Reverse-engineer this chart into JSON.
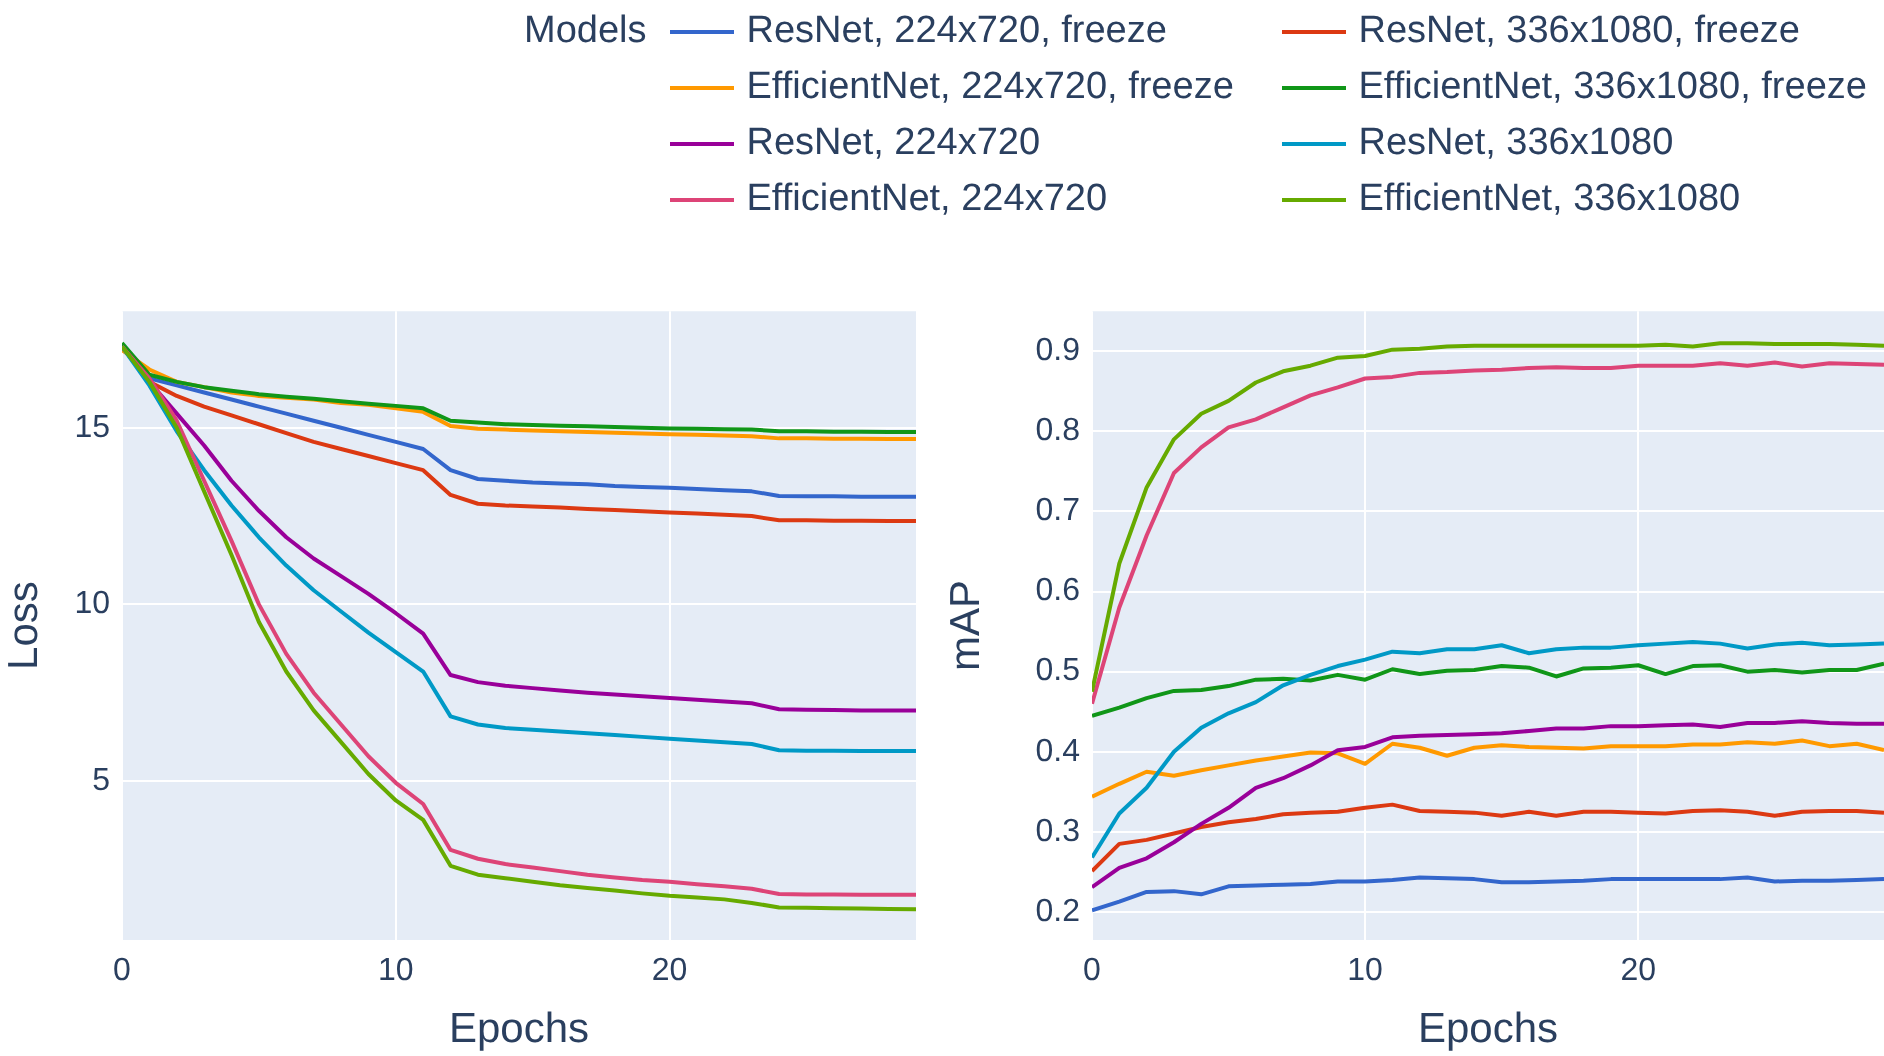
{
  "chart_data": [
    {
      "type": "line",
      "xlabel": "Epochs",
      "ylabel": "Loss",
      "legend_title": "Models",
      "legend": "top",
      "grid": true,
      "marker": "none",
      "line_style": "solid",
      "x": [
        0,
        1,
        2,
        3,
        4,
        5,
        6,
        7,
        8,
        9,
        10,
        11,
        12,
        13,
        14,
        15,
        16,
        17,
        18,
        19,
        20,
        21,
        22,
        23,
        24,
        25,
        26,
        27,
        28,
        29
      ],
      "xlim": [
        0,
        29
      ],
      "xticks": [
        0,
        10,
        20
      ],
      "ylim": [
        0.5,
        18.3
      ],
      "yticks": [
        5,
        10,
        15
      ],
      "series": [
        {
          "name": "ResNet, 224x720, freeze",
          "color": "#3366cc",
          "values": [
            17.3,
            16.4,
            16.2,
            16.0,
            15.8,
            15.6,
            15.4,
            15.2,
            15.0,
            14.8,
            14.6,
            14.4,
            13.8,
            13.55,
            13.5,
            13.45,
            13.42,
            13.4,
            13.35,
            13.32,
            13.3,
            13.27,
            13.23,
            13.2,
            13.07,
            13.06,
            13.06,
            13.05,
            13.05,
            13.05
          ]
        },
        {
          "name": "ResNet, 336x1080, freeze",
          "color": "#dc3912",
          "values": [
            17.3,
            16.3,
            15.9,
            15.6,
            15.35,
            15.1,
            14.85,
            14.6,
            14.4,
            14.2,
            14.0,
            13.8,
            13.1,
            12.85,
            12.8,
            12.77,
            12.74,
            12.7,
            12.67,
            12.64,
            12.6,
            12.57,
            12.54,
            12.5,
            12.38,
            12.38,
            12.37,
            12.37,
            12.36,
            12.36
          ]
        },
        {
          "name": "EfficientNet, 224x720, freeze",
          "color": "#ff9900",
          "values": [
            17.2,
            16.65,
            16.3,
            16.15,
            16.0,
            15.9,
            15.85,
            15.8,
            15.7,
            15.65,
            15.55,
            15.45,
            15.05,
            14.97,
            14.95,
            14.92,
            14.9,
            14.88,
            14.86,
            14.84,
            14.82,
            14.8,
            14.78,
            14.76,
            14.7,
            14.7,
            14.69,
            14.69,
            14.68,
            14.68
          ]
        },
        {
          "name": "EfficientNet, 336x1080, freeze",
          "color": "#109618",
          "values": [
            17.4,
            16.5,
            16.3,
            16.15,
            16.05,
            15.95,
            15.88,
            15.82,
            15.75,
            15.68,
            15.62,
            15.55,
            15.2,
            15.15,
            15.1,
            15.08,
            15.06,
            15.04,
            15.02,
            15.0,
            14.98,
            14.97,
            14.96,
            14.95,
            14.9,
            14.9,
            14.89,
            14.89,
            14.88,
            14.88
          ]
        },
        {
          "name": "ResNet, 224x720",
          "color": "#990099",
          "values": [
            17.3,
            16.3,
            15.4,
            14.5,
            13.5,
            12.65,
            11.9,
            11.3,
            10.8,
            10.3,
            9.75,
            9.17,
            8.0,
            7.8,
            7.7,
            7.63,
            7.56,
            7.5,
            7.45,
            7.4,
            7.35,
            7.3,
            7.25,
            7.2,
            7.03,
            7.02,
            7.01,
            7.0,
            7.0,
            7.0
          ]
        },
        {
          "name": "ResNet, 336x1080",
          "color": "#0099c6",
          "values": [
            17.3,
            16.2,
            14.9,
            13.8,
            12.8,
            11.9,
            11.1,
            10.4,
            9.8,
            9.2,
            8.65,
            8.1,
            6.83,
            6.6,
            6.5,
            6.45,
            6.4,
            6.35,
            6.3,
            6.25,
            6.2,
            6.15,
            6.1,
            6.05,
            5.87,
            5.86,
            5.86,
            5.85,
            5.85,
            5.85
          ]
        },
        {
          "name": "EfficientNet, 224x720",
          "color": "#dd4477",
          "values": [
            17.3,
            16.4,
            15.2,
            13.5,
            11.8,
            10.0,
            8.6,
            7.5,
            6.6,
            5.7,
            4.95,
            4.35,
            3.05,
            2.8,
            2.65,
            2.55,
            2.45,
            2.35,
            2.27,
            2.2,
            2.15,
            2.08,
            2.02,
            1.95,
            1.8,
            1.79,
            1.79,
            1.78,
            1.78,
            1.78
          ]
        },
        {
          "name": "EfficientNet, 336x1080",
          "color": "#66aa00",
          "values": [
            17.3,
            16.3,
            15.0,
            13.2,
            11.4,
            9.5,
            8.1,
            7.0,
            6.1,
            5.2,
            4.45,
            3.9,
            2.6,
            2.35,
            2.25,
            2.15,
            2.05,
            1.97,
            1.9,
            1.82,
            1.75,
            1.7,
            1.65,
            1.55,
            1.42,
            1.41,
            1.4,
            1.39,
            1.38,
            1.37
          ]
        }
      ]
    },
    {
      "type": "line",
      "xlabel": "Epochs",
      "ylabel": "mAP",
      "grid": true,
      "marker": "none",
      "line_style": "solid",
      "x": [
        0,
        1,
        2,
        3,
        4,
        5,
        6,
        7,
        8,
        9,
        10,
        11,
        12,
        13,
        14,
        15,
        16,
        17,
        18,
        19,
        20,
        21,
        22,
        23,
        24,
        25,
        26,
        27,
        28,
        29
      ],
      "xlim": [
        0,
        29
      ],
      "xticks": [
        0,
        10,
        20
      ],
      "ylim": [
        0.165,
        0.95
      ],
      "yticks": [
        0.2,
        0.3,
        0.4,
        0.5,
        0.6,
        0.7,
        0.8,
        0.9
      ],
      "series": [
        {
          "color": "#3366cc",
          "values": [
            0.202,
            0.213,
            0.225,
            0.226,
            0.222,
            0.232,
            0.233,
            0.234,
            0.235,
            0.238,
            0.238,
            0.24,
            0.243,
            0.242,
            0.241,
            0.237,
            0.237,
            0.238,
            0.239,
            0.241,
            0.241,
            0.241,
            0.241,
            0.241,
            0.243,
            0.238,
            0.239,
            0.239,
            0.24,
            0.241
          ]
        },
        {
          "color": "#dc3912",
          "values": [
            0.251,
            0.285,
            0.29,
            0.298,
            0.306,
            0.312,
            0.316,
            0.322,
            0.324,
            0.325,
            0.33,
            0.334,
            0.326,
            0.325,
            0.324,
            0.32,
            0.325,
            0.32,
            0.325,
            0.325,
            0.324,
            0.323,
            0.326,
            0.327,
            0.325,
            0.32,
            0.325,
            0.326,
            0.326,
            0.324
          ]
        },
        {
          "color": "#ff9900",
          "values": [
            0.344,
            0.36,
            0.375,
            0.37,
            0.377,
            0.383,
            0.389,
            0.394,
            0.399,
            0.398,
            0.385,
            0.41,
            0.405,
            0.395,
            0.405,
            0.408,
            0.406,
            0.405,
            0.404,
            0.407,
            0.407,
            0.407,
            0.409,
            0.409,
            0.412,
            0.41,
            0.414,
            0.407,
            0.41,
            0.402
          ]
        },
        {
          "color": "#109618",
          "values": [
            0.445,
            0.455,
            0.467,
            0.476,
            0.477,
            0.482,
            0.49,
            0.491,
            0.489,
            0.496,
            0.49,
            0.503,
            0.497,
            0.501,
            0.502,
            0.507,
            0.505,
            0.494,
            0.504,
            0.505,
            0.508,
            0.497,
            0.507,
            0.508,
            0.5,
            0.502,
            0.499,
            0.502,
            0.502,
            0.51
          ]
        },
        {
          "color": "#990099",
          "values": [
            0.231,
            0.255,
            0.267,
            0.287,
            0.31,
            0.33,
            0.355,
            0.367,
            0.383,
            0.402,
            0.406,
            0.418,
            0.42,
            0.421,
            0.422,
            0.423,
            0.426,
            0.429,
            0.429,
            0.432,
            0.432,
            0.433,
            0.434,
            0.431,
            0.436,
            0.436,
            0.438,
            0.436,
            0.435,
            0.435
          ]
        },
        {
          "color": "#0099c6",
          "values": [
            0.268,
            0.323,
            0.355,
            0.4,
            0.43,
            0.448,
            0.462,
            0.483,
            0.496,
            0.507,
            0.515,
            0.525,
            0.523,
            0.528,
            0.528,
            0.533,
            0.523,
            0.528,
            0.53,
            0.53,
            0.533,
            0.535,
            0.537,
            0.535,
            0.529,
            0.534,
            0.536,
            0.533,
            0.534,
            0.535
          ]
        },
        {
          "color": "#dd4477",
          "values": [
            0.46,
            0.58,
            0.67,
            0.748,
            0.78,
            0.805,
            0.815,
            0.83,
            0.845,
            0.855,
            0.866,
            0.868,
            0.873,
            0.874,
            0.876,
            0.877,
            0.879,
            0.88,
            0.879,
            0.879,
            0.882,
            0.882,
            0.882,
            0.885,
            0.882,
            0.886,
            0.881,
            0.885,
            0.884,
            0.883
          ]
        },
        {
          "color": "#66aa00",
          "values": [
            0.475,
            0.635,
            0.73,
            0.79,
            0.822,
            0.838,
            0.861,
            0.875,
            0.882,
            0.892,
            0.894,
            0.902,
            0.903,
            0.906,
            0.907,
            0.907,
            0.907,
            0.907,
            0.907,
            0.907,
            0.907,
            0.908,
            0.906,
            0.91,
            0.91,
            0.909,
            0.909,
            0.909,
            0.908,
            0.907
          ]
        }
      ]
    }
  ]
}
